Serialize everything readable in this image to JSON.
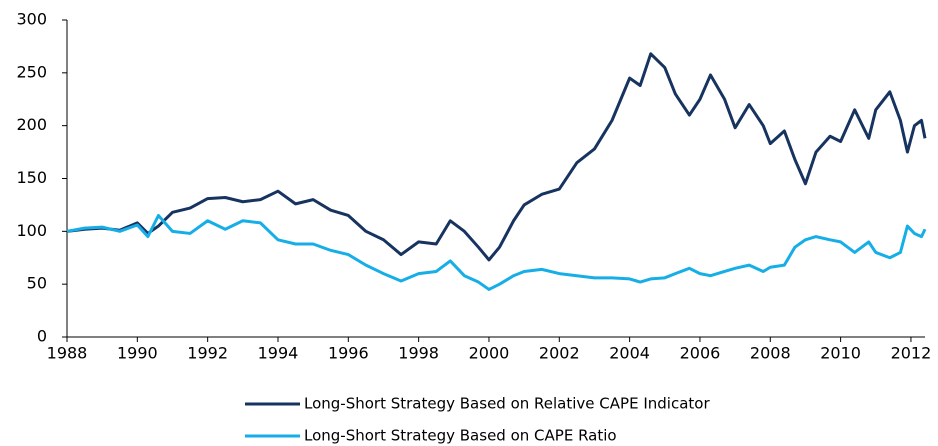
{
  "chart_data": {
    "type": "line",
    "x": [
      1988,
      1988.5,
      1989,
      1989.5,
      1990,
      1990.3,
      1990.6,
      1991,
      1991.5,
      1992,
      1992.5,
      1993,
      1993.5,
      1994,
      1994.5,
      1995,
      1995.5,
      1996,
      1996.5,
      1997,
      1997.5,
      1998,
      1998.5,
      1998.9,
      1999.3,
      1999.7,
      2000,
      2000.3,
      2000.7,
      2001,
      2001.5,
      2002,
      2002.5,
      2003,
      2003.5,
      2004,
      2004.3,
      2004.6,
      2005,
      2005.3,
      2005.7,
      2006,
      2006.3,
      2006.7,
      2007,
      2007.4,
      2007.8,
      2008,
      2008.4,
      2008.7,
      2009,
      2009.3,
      2009.7,
      2010,
      2010.4,
      2010.8,
      2011,
      2011.4,
      2011.7,
      2011.9,
      2012.1,
      2012.3,
      2012.4
    ],
    "series": [
      {
        "name": "Long-Short Strategy Based on Relative CAPE Indicator",
        "color": "#17335f",
        "values": [
          100,
          102,
          103,
          101,
          108,
          98,
          105,
          118,
          122,
          131,
          132,
          128,
          130,
          138,
          126,
          130,
          120,
          115,
          100,
          92,
          78,
          90,
          88,
          110,
          100,
          85,
          73,
          85,
          110,
          125,
          135,
          140,
          165,
          178,
          205,
          245,
          238,
          268,
          255,
          230,
          210,
          225,
          248,
          225,
          198,
          220,
          200,
          183,
          195,
          168,
          145,
          175,
          190,
          185,
          215,
          188,
          215,
          232,
          205,
          175,
          200,
          205,
          188
        ]
      },
      {
        "name": "Long-Short Strategy Based on CAPE Ratio",
        "color": "#16aee6",
        "values": [
          100,
          103,
          104,
          100,
          106,
          95,
          115,
          100,
          98,
          110,
          102,
          110,
          108,
          92,
          88,
          88,
          82,
          78,
          68,
          60,
          53,
          60,
          62,
          72,
          58,
          52,
          45,
          50,
          58,
          62,
          64,
          60,
          58,
          56,
          56,
          55,
          52,
          55,
          56,
          60,
          65,
          60,
          58,
          62,
          65,
          68,
          62,
          66,
          68,
          85,
          92,
          95,
          92,
          90,
          80,
          90,
          80,
          75,
          80,
          105,
          98,
          95,
          102
        ]
      }
    ],
    "xlim": [
      1988,
      2012.4
    ],
    "xticks": [
      1988,
      1990,
      1992,
      1994,
      1996,
      1998,
      2000,
      2002,
      2004,
      2006,
      2008,
      2010,
      2012
    ],
    "ylim": [
      0,
      300
    ],
    "yticks": [
      0,
      50,
      100,
      150,
      200,
      250,
      300
    ]
  }
}
